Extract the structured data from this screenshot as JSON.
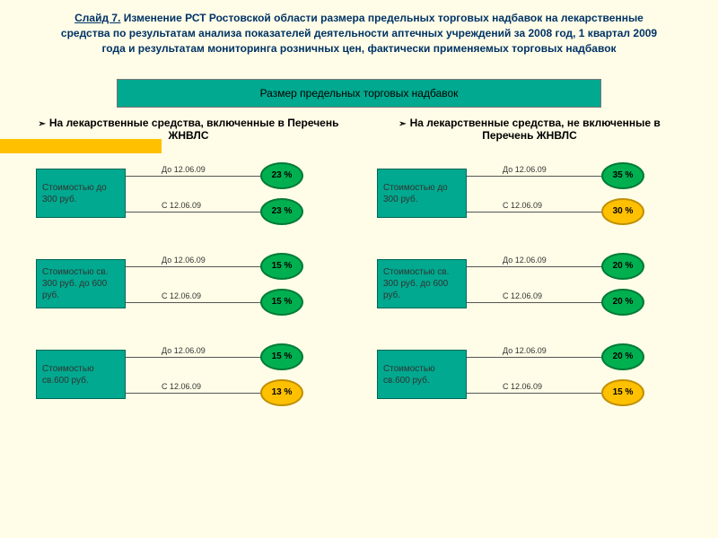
{
  "slide_label": "Слайд 7.",
  "title_rest": " Изменение РСТ Ростовской области размера предельных торговых надбавок на лекарственные средства по результатам анализа показателей деятельности аптечных учреждений за 2008 год, 1 квартал 2009 года и результатам мониторинга розничных цен, фактически применяемых торговых надбавок",
  "banner": "Размер предельных торговых надбавок",
  "left": {
    "title": "На лекарственные средства, включенные в Перечень ЖНВЛС",
    "groups": [
      {
        "price": "Стоимостью до 300 руб.",
        "before_label": "До 12.06.09",
        "before_pct": "23 %",
        "before_color": "green",
        "after_label": "С 12.06.09",
        "after_pct": "23 %",
        "after_color": "green"
      },
      {
        "price": "Стоимостью св. 300 руб. до 600 руб.",
        "before_label": "До 12.06.09",
        "before_pct": "15 %",
        "before_color": "green",
        "after_label": "С 12.06.09",
        "after_pct": "15 %",
        "after_color": "green"
      },
      {
        "price": "Стоимостью св.600 руб.",
        "before_label": "До 12.06.09",
        "before_pct": "15 %",
        "before_color": "green",
        "after_label": "С 12.06.09",
        "after_pct": "13 %",
        "after_color": "yellow"
      }
    ]
  },
  "right": {
    "title": "На лекарственные средства, не включенные в Перечень ЖНВЛС",
    "groups": [
      {
        "price": "Стоимостью до 300 руб.",
        "before_label": "До 12.06.09",
        "before_pct": "35 %",
        "before_color": "green",
        "after_label": "С 12.06.09",
        "after_pct": "30 %",
        "after_color": "yellow"
      },
      {
        "price": "Стоимостью св. 300 руб. до 600 руб.",
        "before_label": "До 12.06.09",
        "before_pct": "20 %",
        "before_color": "green",
        "after_label": "С 12.06.09",
        "after_pct": "20 %",
        "after_color": "green"
      },
      {
        "price": "Стоимостью св.600 руб.",
        "before_label": "До 12.06.09",
        "before_pct": "20 %",
        "before_color": "green",
        "after_label": "С 12.06.09",
        "after_pct": "15 %",
        "after_color": "yellow"
      }
    ]
  },
  "colors": {
    "background": "#fffde7",
    "teal": "#00a98f",
    "teal_border": "#006656",
    "green": "#00b050",
    "green_border": "#007a36",
    "yellow": "#ffc000",
    "yellow_border": "#c08f00",
    "title_color": "#003366"
  }
}
